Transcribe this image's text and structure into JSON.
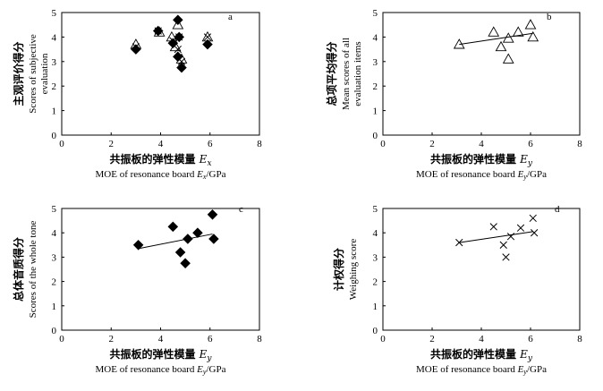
{
  "chart_data": [
    {
      "type": "scatter",
      "panel": "a",
      "xlim": [
        0,
        8
      ],
      "ylim": [
        0,
        5
      ],
      "xticks": [
        0,
        2,
        4,
        6,
        8
      ],
      "yticks": [
        0,
        1,
        2,
        3,
        4,
        5
      ],
      "xlabel_cn": "共振板的弹性模量",
      "xlabel_sym": "E",
      "xlabel_sub": "x",
      "xlabel_en_pre": "MOE of resonance board ",
      "xlabel_en_sym": "E",
      "xlabel_en_sub": "x",
      "xlabel_en_post": "/GPa",
      "ylabel_cn": "主观评价得分",
      "ylabel_en": [
        "Scores of subjective",
        "evaluation"
      ],
      "fit": null,
      "series": [
        {
          "name": "Scores of the whole tone",
          "marker": "diamond",
          "x": [
            3.0,
            3.9,
            4.5,
            4.7,
            4.7,
            4.75,
            4.85,
            5.9
          ],
          "y": [
            3.5,
            4.25,
            3.75,
            3.2,
            4.7,
            4.0,
            2.75,
            3.7
          ]
        },
        {
          "name": "Mean scores of all evaluation items",
          "marker": "triangle",
          "x": [
            3.0,
            3.95,
            4.45,
            4.6,
            4.7,
            4.85,
            5.9
          ],
          "y": [
            3.7,
            4.2,
            4.0,
            3.6,
            4.5,
            3.1,
            4.0
          ]
        },
        {
          "name": "Weighing score",
          "marker": "cross",
          "x": [
            3.0,
            3.9,
            4.5,
            4.7,
            4.75,
            4.85,
            5.9
          ],
          "y": [
            3.6,
            4.25,
            3.85,
            3.5,
            4.0,
            3.0,
            4.0
          ]
        }
      ]
    },
    {
      "type": "scatter",
      "panel": "b",
      "xlim": [
        0,
        8
      ],
      "ylim": [
        0,
        5
      ],
      "xticks": [
        0,
        2,
        4,
        6,
        8
      ],
      "yticks": [
        0,
        1,
        2,
        3,
        4,
        5
      ],
      "xlabel_cn": "共振板的弹性模量",
      "xlabel_sym": "E",
      "xlabel_sub": "y",
      "xlabel_en_pre": "MOE of resonance board ",
      "xlabel_en_sym": "E",
      "xlabel_en_sub": "y",
      "xlabel_en_post": "/GPa",
      "ylabel_cn": "总项平均得分",
      "ylabel_en": [
        "Mean scores of all",
        "evaluation items"
      ],
      "fit": {
        "x": [
          3.1,
          6.1
        ],
        "y": [
          3.7,
          4.15
        ]
      },
      "series": [
        {
          "name": "Mean scores of all evaluation items",
          "marker": "triangle",
          "x": [
            3.1,
            4.5,
            4.8,
            5.1,
            5.1,
            5.5,
            6.0,
            6.1
          ],
          "y": [
            3.7,
            4.2,
            3.6,
            3.1,
            3.95,
            4.2,
            4.5,
            4.0
          ]
        }
      ]
    },
    {
      "type": "scatter",
      "panel": "c",
      "xlim": [
        0,
        8
      ],
      "ylim": [
        0,
        5
      ],
      "xticks": [
        0,
        2,
        4,
        6,
        8
      ],
      "yticks": [
        0,
        1,
        2,
        3,
        4,
        5
      ],
      "xlabel_cn": "共振板的弹性模量",
      "xlabel_sym": "E",
      "xlabel_sub": "y",
      "xlabel_en_pre": "MOE of resonance board ",
      "xlabel_en_sym": "E",
      "xlabel_en_sub": "y",
      "xlabel_en_post": "/GPa",
      "ylabel_cn": "总体音质得分",
      "ylabel_en": [
        "Scores of the whole tone"
      ],
      "fit": {
        "x": [
          3.1,
          6.1
        ],
        "y": [
          3.35,
          3.95
        ]
      },
      "series": [
        {
          "name": "Scores of the whole tone",
          "marker": "diamond",
          "x": [
            3.1,
            4.5,
            4.8,
            5.0,
            5.1,
            5.5,
            6.1,
            6.15
          ],
          "y": [
            3.5,
            4.25,
            3.2,
            2.75,
            3.75,
            4.0,
            4.75,
            3.75
          ]
        }
      ]
    },
    {
      "type": "scatter",
      "panel": "d",
      "xlim": [
        0,
        8
      ],
      "ylim": [
        0,
        5
      ],
      "xticks": [
        0,
        2,
        4,
        6,
        8
      ],
      "yticks": [
        0,
        1,
        2,
        3,
        4,
        5
      ],
      "xlabel_cn": "共振板的弹性模量",
      "xlabel_sym": "E",
      "xlabel_sub": "y",
      "xlabel_en_pre": "MOE of resonance board ",
      "xlabel_en_sym": "E",
      "xlabel_en_sub": "y",
      "xlabel_en_post": "/GPa",
      "ylabel_cn": "计权得分",
      "ylabel_en": [
        "Weighing score"
      ],
      "fit": {
        "x": [
          3.1,
          6.1
        ],
        "y": [
          3.6,
          4.05
        ]
      },
      "series": [
        {
          "name": "Weighing score",
          "marker": "cross",
          "x": [
            3.1,
            4.5,
            4.9,
            5.0,
            5.2,
            5.6,
            6.1,
            6.15
          ],
          "y": [
            3.6,
            4.25,
            3.5,
            3.0,
            3.85,
            4.2,
            4.6,
            4.0
          ]
        }
      ]
    }
  ]
}
